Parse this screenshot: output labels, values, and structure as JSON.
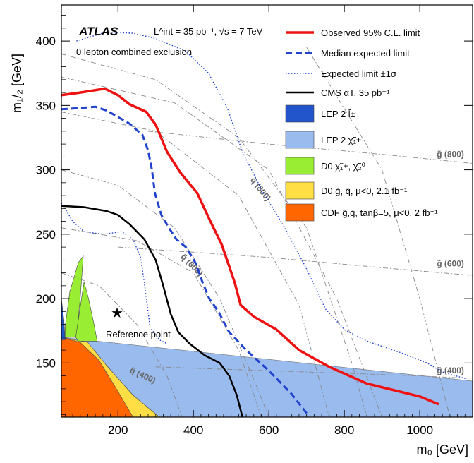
{
  "chart_data": {
    "type": "line",
    "xlabel": "m₀ [GeV]",
    "ylabel": "m₁/₂ [GeV]",
    "xlim": [
      50,
      1140
    ],
    "ylim": [
      108,
      428
    ],
    "xticks": [
      200,
      400,
      600,
      800,
      1000
    ],
    "yticks": [
      150,
      200,
      250,
      300,
      350,
      400
    ],
    "grid": false,
    "legend_position": "top-right",
    "atlas_label": "ATLAS",
    "lumi_label": "L^int = 35 pb⁻¹, √s = 7 TeV",
    "analysis_label": "0 lepton combined exclusion",
    "colors": {
      "observed": "#ee1111",
      "expected": "#2244cc",
      "cms": "#000000",
      "lep_slepton": "#2255cc",
      "lep_chargino": "#99bbee",
      "d0_chargino": "#99ee33",
      "d0_squark": "#ffdd44",
      "cdf": "#ff6600"
    },
    "series": [
      {
        "name": "Observed 95% C.L. limit",
        "style": "solid-thick",
        "points": [
          [
            50,
            358
          ],
          [
            100,
            360
          ],
          [
            165,
            363
          ],
          [
            200,
            358
          ],
          [
            230,
            351
          ],
          [
            275,
            345
          ],
          [
            300,
            335
          ],
          [
            330,
            314
          ],
          [
            365,
            298
          ],
          [
            410,
            282
          ],
          [
            445,
            260
          ],
          [
            475,
            242
          ],
          [
            495,
            225
          ],
          [
            510,
            212
          ],
          [
            525,
            195
          ],
          [
            560,
            186
          ],
          [
            620,
            176
          ],
          [
            680,
            160
          ],
          [
            760,
            147
          ],
          [
            860,
            134
          ],
          [
            1000,
            124
          ],
          [
            1050,
            118
          ]
        ]
      },
      {
        "name": "Median expected limit",
        "style": "dashed",
        "points": [
          [
            50,
            347
          ],
          [
            100,
            348
          ],
          [
            140,
            349
          ],
          [
            170,
            346
          ],
          [
            200,
            341
          ],
          [
            230,
            336
          ],
          [
            265,
            327
          ],
          [
            280,
            315
          ],
          [
            290,
            300
          ],
          [
            298,
            282
          ],
          [
            315,
            265
          ],
          [
            335,
            255
          ],
          [
            355,
            246
          ],
          [
            380,
            240
          ],
          [
            405,
            228
          ],
          [
            425,
            212
          ],
          [
            442,
            200
          ],
          [
            450,
            197
          ],
          [
            470,
            188
          ],
          [
            480,
            182
          ],
          [
            495,
            174
          ],
          [
            540,
            160
          ],
          [
            600,
            144
          ],
          [
            660,
            126
          ],
          [
            700,
            111
          ]
        ]
      },
      {
        "name": "Expected limit ±1σ",
        "style": "dotted",
        "role": "upper",
        "points": [
          [
            90,
            400
          ],
          [
            170,
            407
          ],
          [
            240,
            406
          ],
          [
            300,
            402
          ],
          [
            380,
            392
          ],
          [
            440,
            375
          ],
          [
            490,
            348
          ],
          [
            530,
            314
          ],
          [
            580,
            285
          ],
          [
            640,
            256
          ],
          [
            700,
            223
          ],
          [
            750,
            192
          ],
          [
            800,
            176
          ],
          [
            860,
            167
          ],
          [
            950,
            158
          ],
          [
            1020,
            150
          ],
          [
            1060,
            143
          ],
          [
            1120,
            138
          ]
        ]
      },
      {
        "name": "Expected limit ±1σ",
        "style": "dotted",
        "role": "lower",
        "points": [
          [
            50,
            274
          ],
          [
            60,
            270
          ],
          [
            80,
            260
          ],
          [
            110,
            252
          ],
          [
            160,
            250
          ],
          [
            210,
            252
          ],
          [
            240,
            246
          ],
          [
            260,
            232
          ],
          [
            270,
            212
          ],
          [
            285,
            178
          ],
          [
            310,
            168
          ],
          [
            330,
            165
          ]
        ]
      },
      {
        "name": "CMS αT, 35 pb⁻¹",
        "style": "solid",
        "points": [
          [
            50,
            272
          ],
          [
            110,
            271
          ],
          [
            170,
            268
          ],
          [
            200,
            265
          ],
          [
            230,
            258
          ],
          [
            270,
            246
          ],
          [
            300,
            230
          ],
          [
            320,
            210
          ],
          [
            340,
            188
          ],
          [
            360,
            174
          ],
          [
            390,
            165
          ],
          [
            430,
            156
          ],
          [
            470,
            150
          ],
          [
            495,
            140
          ],
          [
            515,
            125
          ],
          [
            530,
            108
          ]
        ]
      }
    ],
    "legend_areas": [
      {
        "name": "LEP 2 l̃±"
      },
      {
        "name": "LEP 2 χ̃₁±"
      },
      {
        "name": "D0 χ̃₁±, χ̃₂⁰"
      },
      {
        "name": "D0 g̃, q̃, μ<0, 2.1 fb⁻¹"
      },
      {
        "name": "CDF g̃,q̃, tanβ=5, μ<0, 2 fb⁻¹"
      }
    ],
    "annotations": {
      "reference_point": {
        "label": "Reference point",
        "x": 200,
        "y": 190
      },
      "squark_labels": [
        "q̃ (800)",
        "q̃ (600)",
        "q̃ (400)"
      ],
      "gluino_labels": [
        "g̃ (800)",
        "g̃ (600)",
        "g̃ (400)"
      ]
    }
  }
}
